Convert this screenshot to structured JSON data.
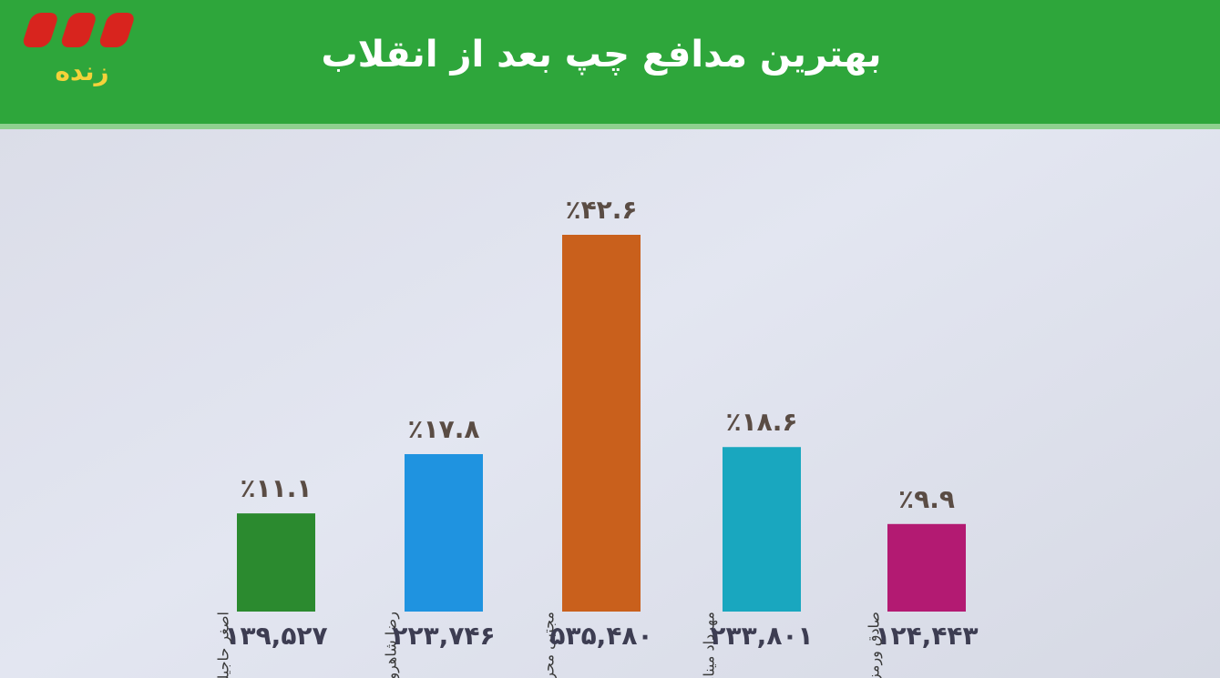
{
  "logo": "زنده",
  "chart_data": {
    "type": "bar",
    "title": "بهترین مدافع چپ بعد از انقلاب",
    "categories": [
      "اصغر حاجیلو",
      "رضا شاهرودی",
      "مجتبی محرمی",
      "مهرداد میناوند",
      "صادق ورمزیار"
    ],
    "values": [
      11.1,
      17.8,
      42.6,
      18.6,
      9.9
    ],
    "value_labels": [
      "٪۱۱.۱",
      "٪۱۷.۸",
      "٪۴۲.۶",
      "٪۱۸.۶",
      "٪۹.۹"
    ],
    "colors": [
      "#2b8a2f",
      "#1f93e0",
      "#c9601c",
      "#19a7bf",
      "#b31a72"
    ],
    "counts": [
      139527,
      223746,
      535480,
      233801,
      124443
    ],
    "count_labels": [
      "۱۳۹,۵۲۷",
      "۲۲۳,۷۴۶",
      "۵۳۵,۴۸۰",
      "۲۳۳,۸۰۱",
      "۱۲۴,۴۴۳"
    ]
  }
}
